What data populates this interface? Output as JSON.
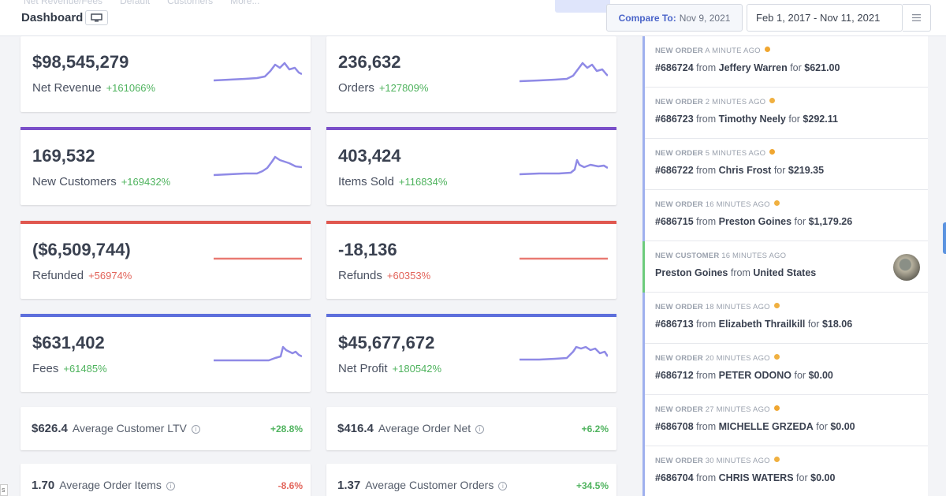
{
  "header": {
    "title": "Dashboard",
    "ghost_tabs": [
      "Net Revenue/Fees",
      "Default",
      "Customers",
      "More..."
    ],
    "compare_label": "Compare To:",
    "compare_date": "Nov 9, 2021",
    "date_range": "Feb 1, 2017 - Nov 11, 2021"
  },
  "cards": [
    {
      "value": "$98,545,279",
      "label": "Net Revenue",
      "change": "+161066%"
    },
    {
      "value": "236,632",
      "label": "Orders",
      "change": "+127809%"
    },
    {
      "value": "169,532",
      "label": "New Customers",
      "change": "+169432%"
    },
    {
      "value": "403,424",
      "label": "Items Sold",
      "change": "+116834%"
    },
    {
      "value": "($6,509,744)",
      "label": "Refunded",
      "change": "+56974%"
    },
    {
      "value": "-18,136",
      "label": "Refunds",
      "change": "+60353%"
    },
    {
      "value": "$631,402",
      "label": "Fees",
      "change": "+61485%"
    },
    {
      "value": "$45,677,672",
      "label": "Net Profit",
      "change": "+180542%"
    }
  ],
  "minis": [
    {
      "value": "$626.4",
      "label": "Average Customer LTV",
      "change": "+28.8%"
    },
    {
      "value": "$416.4",
      "label": "Average Order Net",
      "change": "+6.2%"
    },
    {
      "value": "1.70",
      "label": "Average Order Items",
      "change": "-8.6%"
    },
    {
      "value": "1.37",
      "label": "Average Customer Orders",
      "change": "+34.5%"
    }
  ],
  "colors": {
    "purple": "#7a4fc9",
    "red": "#e0574f",
    "blue": "#5d6fdc",
    "spark": "#8f8ae6",
    "spark_flat": "#e97a72"
  },
  "feed": [
    {
      "kind": "NEW ORDER",
      "time": "A MINUTE AGO",
      "order": "#686724",
      "from": "from",
      "name": "Jeffery Warren",
      "for": "for",
      "amount": "$621.00",
      "dot": "#f0a630"
    },
    {
      "kind": "NEW ORDER",
      "time": "2 MINUTES AGO",
      "order": "#686723",
      "from": "from",
      "name": "Timothy Neely",
      "for": "for",
      "amount": "$292.11",
      "dot": "#f0b040"
    },
    {
      "kind": "NEW ORDER",
      "time": "5 MINUTES AGO",
      "order": "#686722",
      "from": "from",
      "name": "Chris Frost",
      "for": "for",
      "amount": "$219.35",
      "dot": "#f0a630"
    },
    {
      "kind": "NEW ORDER",
      "time": "16 MINUTES AGO",
      "order": "#686715",
      "from": "from",
      "name": "Preston Goines",
      "for": "for",
      "amount": "$1,179.26",
      "dot": "#f0b040"
    },
    {
      "kind": "NEW CUSTOMER",
      "time": "16 MINUTES AGO",
      "name": "Preston Goines",
      "from": "from",
      "country": "United States"
    },
    {
      "kind": "NEW ORDER",
      "time": "18 MINUTES AGO",
      "order": "#686713",
      "from": "from",
      "name": "Elizabeth Thrailkill",
      "for": "for",
      "amount": "$18.06",
      "dot": "#f0b040"
    },
    {
      "kind": "NEW ORDER",
      "time": "20 MINUTES AGO",
      "order": "#686712",
      "from": "from",
      "name": "PETER ODONO",
      "for": "for",
      "amount": "$0.00",
      "dot": "#f0b040"
    },
    {
      "kind": "NEW ORDER",
      "time": "27 MINUTES AGO",
      "order": "#686708",
      "from": "from",
      "name": "MICHELLE GRZEDA",
      "for": "for",
      "amount": "$0.00",
      "dot": "#f0a630"
    },
    {
      "kind": "NEW ORDER",
      "time": "30 MINUTES AGO",
      "order": "#686704",
      "from": "from",
      "name": "CHRIS WATERS",
      "for": "for",
      "amount": "$0.00",
      "dot": "#f0b040"
    }
  ],
  "corner_label": "s"
}
